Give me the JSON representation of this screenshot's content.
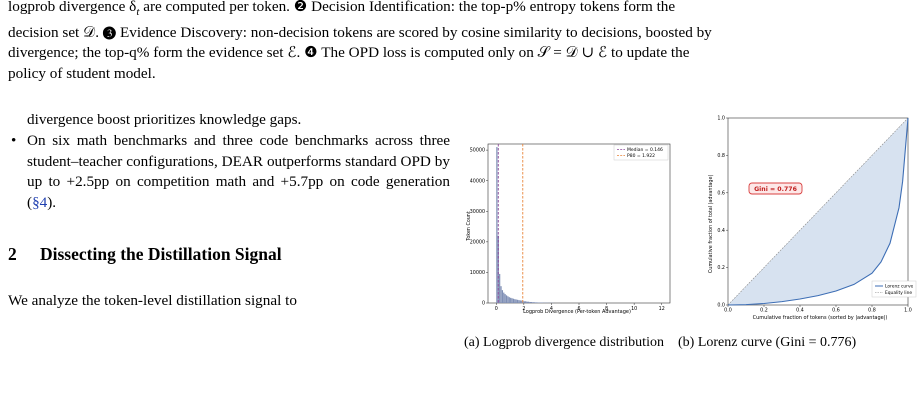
{
  "caption": {
    "line1": "logprob divergence δ",
    "line1_sub": "t",
    "line1_rest": " are computed per token. ❷ Decision Identification: the top-p% entropy tokens form the",
    "line2": "decision set 𝒟. ❸ Evidence Discovery: non-decision tokens are scored by cosine similarity to decisions, boosted by",
    "line3": "divergence; the top-q% form the evidence set ℰ. ❹ The OPD loss is computed only on 𝒮 = 𝒟 ∪ ℰ to update the",
    "line4": "policy of student model."
  },
  "body": {
    "bullet_cont": "divergence boost prioritizes knowledge gaps.",
    "bullet_marker": "•",
    "bullet2": "On six math benchmarks and three code benchmarks across three student–teacher configurations, DEAR outperforms standard OPD by up to +2.5pp on competition math and +5.7pp on code generation (",
    "bullet2_ref": "§4",
    "bullet2_end": ").",
    "section_number": "2",
    "section_title": "Dissecting the Distillation Signal",
    "para": "We analyze the token-level distillation signal to"
  },
  "figure_a": {
    "subcaption": "(a) Logprob divergence distribution",
    "xlabel": "Logprob Divergence (Per-token Advantage)",
    "ylabel": "Token Count",
    "yticks": [
      "0",
      "10000",
      "20000",
      "30000",
      "40000",
      "50000"
    ],
    "xticks": [
      "0",
      "2",
      "4",
      "6",
      "8",
      "10",
      "12"
    ],
    "legend": [
      "Median = 0.146",
      "P80 = 1.922"
    ],
    "colors": {
      "bars": "#7f8fb5",
      "median": "#8b4a9a",
      "p80": "#e8843a"
    }
  },
  "figure_b": {
    "subcaption": "(b) Lorenz curve (Gini = 0.776)",
    "gini_label": "Gini = 0.776",
    "xlabel": "Cumulative fraction of tokens (sorted by |advantage|)",
    "ylabel": "Cumulative fraction of total |advantage|",
    "ticks": [
      "0.0",
      "0.2",
      "0.4",
      "0.6",
      "0.8",
      "1.0"
    ],
    "legend": [
      "Lorenz curve",
      "Equality line"
    ],
    "colors": {
      "curve": "#3d6eb5",
      "fill": "#d7e2f0",
      "gini_border": "#d94040"
    }
  },
  "chart_data": [
    {
      "type": "bar",
      "title": "",
      "xlabel": "Logprob Divergence (Per-token Advantage)",
      "ylabel": "Token Count",
      "xlim": [
        -0.6,
        12.6
      ],
      "ylim": [
        0,
        52000
      ],
      "series": [
        {
          "x": [
            0.05,
            0.15,
            0.25,
            0.35,
            0.45,
            0.55,
            0.65,
            0.75,
            0.85,
            0.95,
            1.05,
            1.15,
            1.25,
            1.35,
            1.45,
            1.55,
            1.65,
            1.75,
            1.85,
            1.95,
            2.1,
            2.3,
            2.5,
            2.7,
            2.9,
            3.2,
            3.6,
            4.0
          ],
          "values": [
            51000,
            22000,
            9500,
            5500,
            4200,
            3400,
            2900,
            2500,
            2200,
            1900,
            1700,
            1550,
            1400,
            1250,
            1150,
            1050,
            950,
            850,
            800,
            700,
            550,
            420,
            330,
            260,
            200,
            140,
            90,
            50
          ]
        }
      ],
      "vlines": [
        {
          "name": "Median = 0.146",
          "x": 0.146
        },
        {
          "name": "P80 = 1.922",
          "x": 1.922
        }
      ],
      "legend_position": "top-right"
    },
    {
      "type": "line",
      "title": "",
      "xlabel": "Cumulative fraction of tokens (sorted by |advantage|)",
      "ylabel": "Cumulative fraction of total |advantage|",
      "xlim": [
        0,
        1
      ],
      "ylim": [
        0,
        1
      ],
      "series": [
        {
          "name": "Lorenz curve",
          "x": [
            0,
            0.1,
            0.2,
            0.3,
            0.4,
            0.5,
            0.6,
            0.7,
            0.8,
            0.85,
            0.9,
            0.95,
            0.97,
            1.0
          ],
          "values": [
            0,
            0.002,
            0.008,
            0.018,
            0.032,
            0.05,
            0.075,
            0.11,
            0.17,
            0.23,
            0.33,
            0.52,
            0.66,
            1.0
          ]
        },
        {
          "name": "Equality line",
          "x": [
            0,
            1
          ],
          "values": [
            0,
            1
          ]
        }
      ],
      "annotation": "Gini = 0.776",
      "legend_position": "bottom-right"
    }
  ]
}
